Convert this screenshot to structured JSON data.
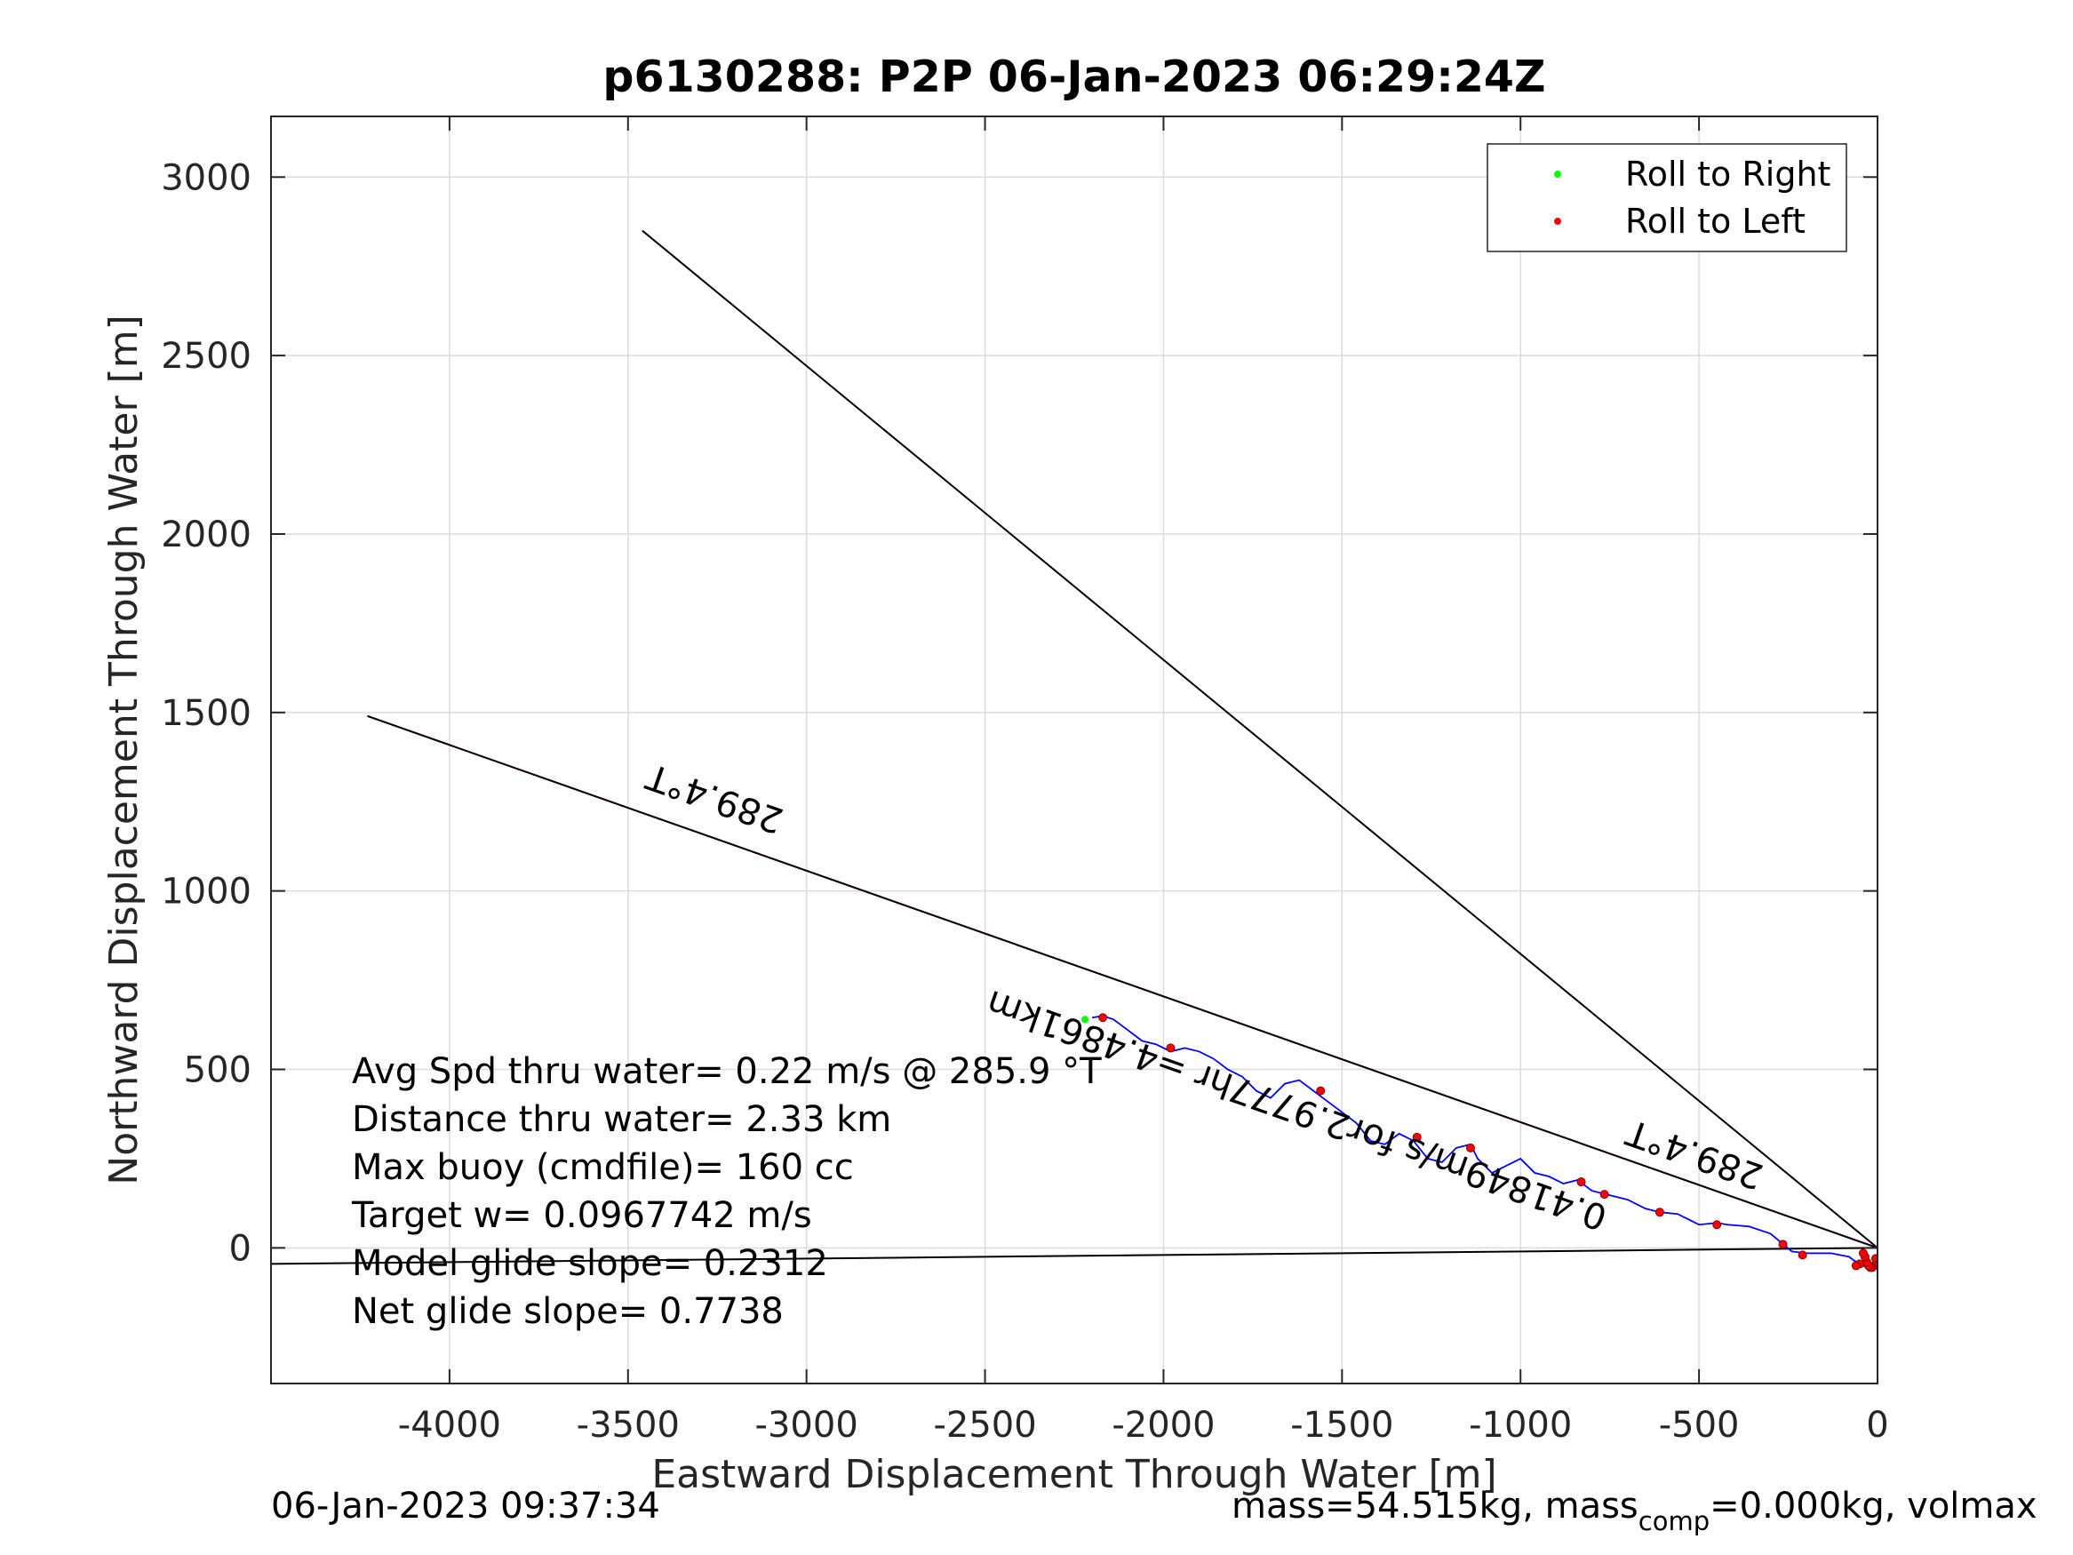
{
  "chart_data": {
    "type": "scatter",
    "title": "p6130288: P2P 06-Jan-2023 06:29:24Z",
    "xlabel": "Eastward Displacement Through Water [m]",
    "ylabel": "Northward Displacement Through Water [m]",
    "xlim": [
      -4500,
      0
    ],
    "ylim": [
      -380,
      3170
    ],
    "xticks": [
      -4000,
      -3500,
      -3000,
      -2500,
      -2000,
      -1500,
      -1000,
      -500,
      0
    ],
    "xtick_labels": [
      "-4000",
      "-3500",
      "-3000",
      "-2500",
      "-2000",
      "-1500",
      "-1000",
      "-500",
      "0"
    ],
    "yticks": [
      0,
      500,
      1000,
      1500,
      2000,
      2500,
      3000
    ],
    "ytick_labels": [
      "0",
      "500",
      "1000",
      "1500",
      "2000",
      "2500",
      "3000"
    ],
    "grid": true,
    "legend": {
      "placement": "top-right",
      "entries": [
        {
          "label": "Roll to Right",
          "color": "#00ff00"
        },
        {
          "label": "Roll to Left",
          "color": "#ff0000"
        }
      ]
    },
    "lines": [
      {
        "x": [
          0,
          -3460
        ],
        "y": [
          0,
          2850
        ],
        "color": "#000000"
      },
      {
        "x": [
          0,
          -4230
        ],
        "y": [
          0,
          1490
        ],
        "color": "#ff00ff"
      },
      {
        "x": [
          0,
          -4230
        ],
        "y": [
          0,
          1490
        ],
        "color": "#000000"
      },
      {
        "x": [
          0,
          -4500
        ],
        "y": [
          0,
          -45
        ],
        "color": "#000000"
      }
    ],
    "track": {
      "color": "#0000ff",
      "x": [
        -10,
        -20,
        -45,
        -80,
        -130,
        -200,
        -240,
        -270,
        -300,
        -360,
        -420,
        -450,
        -500,
        -560,
        -610,
        -650,
        -700,
        -760,
        -800,
        -840,
        -880,
        -920,
        -960,
        -1000,
        -1040,
        -1080,
        -1120,
        -1140,
        -1180,
        -1220,
        -1260,
        -1300,
        -1340,
        -1380,
        -1420,
        -1460,
        -1500,
        -1540,
        -1580,
        -1620,
        -1660,
        -1700,
        -1740,
        -1780,
        -1820,
        -1860,
        -1900,
        -1940,
        -1980,
        -2020,
        -2060,
        -2100,
        -2140,
        -2170,
        -2200
      ],
      "y": [
        -50,
        -55,
        -50,
        -25,
        -15,
        -15,
        -10,
        15,
        40,
        60,
        65,
        70,
        65,
        95,
        100,
        110,
        135,
        150,
        160,
        190,
        180,
        200,
        210,
        250,
        230,
        210,
        250,
        290,
        280,
        240,
        250,
        300,
        320,
        290,
        300,
        350,
        380,
        410,
        440,
        470,
        460,
        420,
        440,
        480,
        500,
        530,
        550,
        560,
        550,
        570,
        580,
        610,
        640,
        650,
        645
      ]
    },
    "markers_left": {
      "color": "#ff0000",
      "x": [
        -5,
        -10,
        -15,
        -20,
        -25,
        -30,
        -35,
        -40,
        -50,
        -60,
        -210,
        -265,
        -450,
        -610,
        -765,
        -830,
        -1140,
        -1290,
        -1560,
        -1980,
        -2170
      ],
      "y": [
        -30,
        -50,
        -55,
        -55,
        -50,
        -40,
        -25,
        -15,
        -45,
        -50,
        -20,
        10,
        65,
        100,
        150,
        185,
        280,
        310,
        440,
        560,
        645
      ]
    },
    "markers_right": {
      "color": "#00ff00",
      "x": [
        -2220
      ],
      "y": [
        640
      ]
    },
    "rotated_labels": [
      {
        "text": "289.4°T",
        "x": -3255,
        "y": 1265
      },
      {
        "text": "0.41849m/s for2.9777hr =4.4861km",
        "x": -1625,
        "y": 392
      },
      {
        "text": "289.4°T",
        "x": -510,
        "y": 268
      }
    ],
    "info_text": [
      "Avg Spd thru water=  0.22 m/s @ 285.9 °T",
      "Distance thru water=  2.33 km",
      "Max buoy (cmdfile)= 160 cc",
      "Target w= 0.0967742 m/s",
      "Model glide slope= 0.2312",
      "Net glide slope= 0.7738"
    ]
  },
  "footer": {
    "timestamp": "06-Jan-2023 09:37:34",
    "mass_prefix": "mass=54.515kg, mass",
    "mass_sub": "comp",
    "mass_suffix": "=0.000kg, volmax"
  }
}
